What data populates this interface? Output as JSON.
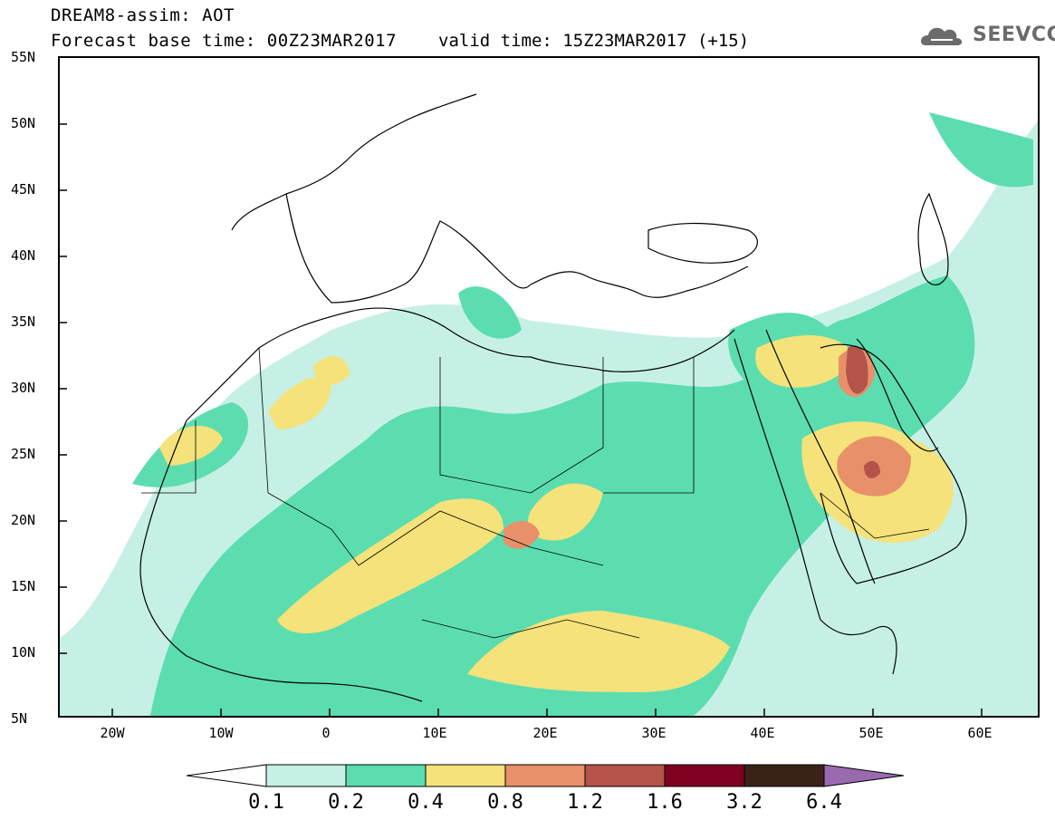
{
  "title": {
    "line1": "DREAM8-assim: AOT",
    "line2": "Forecast base time: 00Z23MAR2017",
    "valid": "valid time: 15Z23MAR2017 (+15)"
  },
  "logo": {
    "text": "SEEVCCC",
    "icon": "cloud-logo-icon"
  },
  "map": {
    "projection": "lat-lon",
    "lon_range": [
      -25,
      65
    ],
    "lat_range": [
      5,
      55
    ],
    "lat_ticks": [
      "55N",
      "50N",
      "45N",
      "40N",
      "35N",
      "30N",
      "25N",
      "20N",
      "15N",
      "10N",
      "5N"
    ],
    "lon_ticks": [
      "20W",
      "10W",
      "0",
      "10E",
      "20E",
      "30E",
      "40E",
      "50E",
      "60E"
    ]
  },
  "colorbar": {
    "labels": [
      "0.1",
      "0.2",
      "0.4",
      "0.8",
      "1.2",
      "1.6",
      "3.2",
      "6.4"
    ],
    "colors": [
      "#c6f0e6",
      "#5cddb0",
      "#f5e27a",
      "#e8906a",
      "#b4534a",
      "#800020",
      "#3a2316",
      "#9a6ab0"
    ]
  }
}
